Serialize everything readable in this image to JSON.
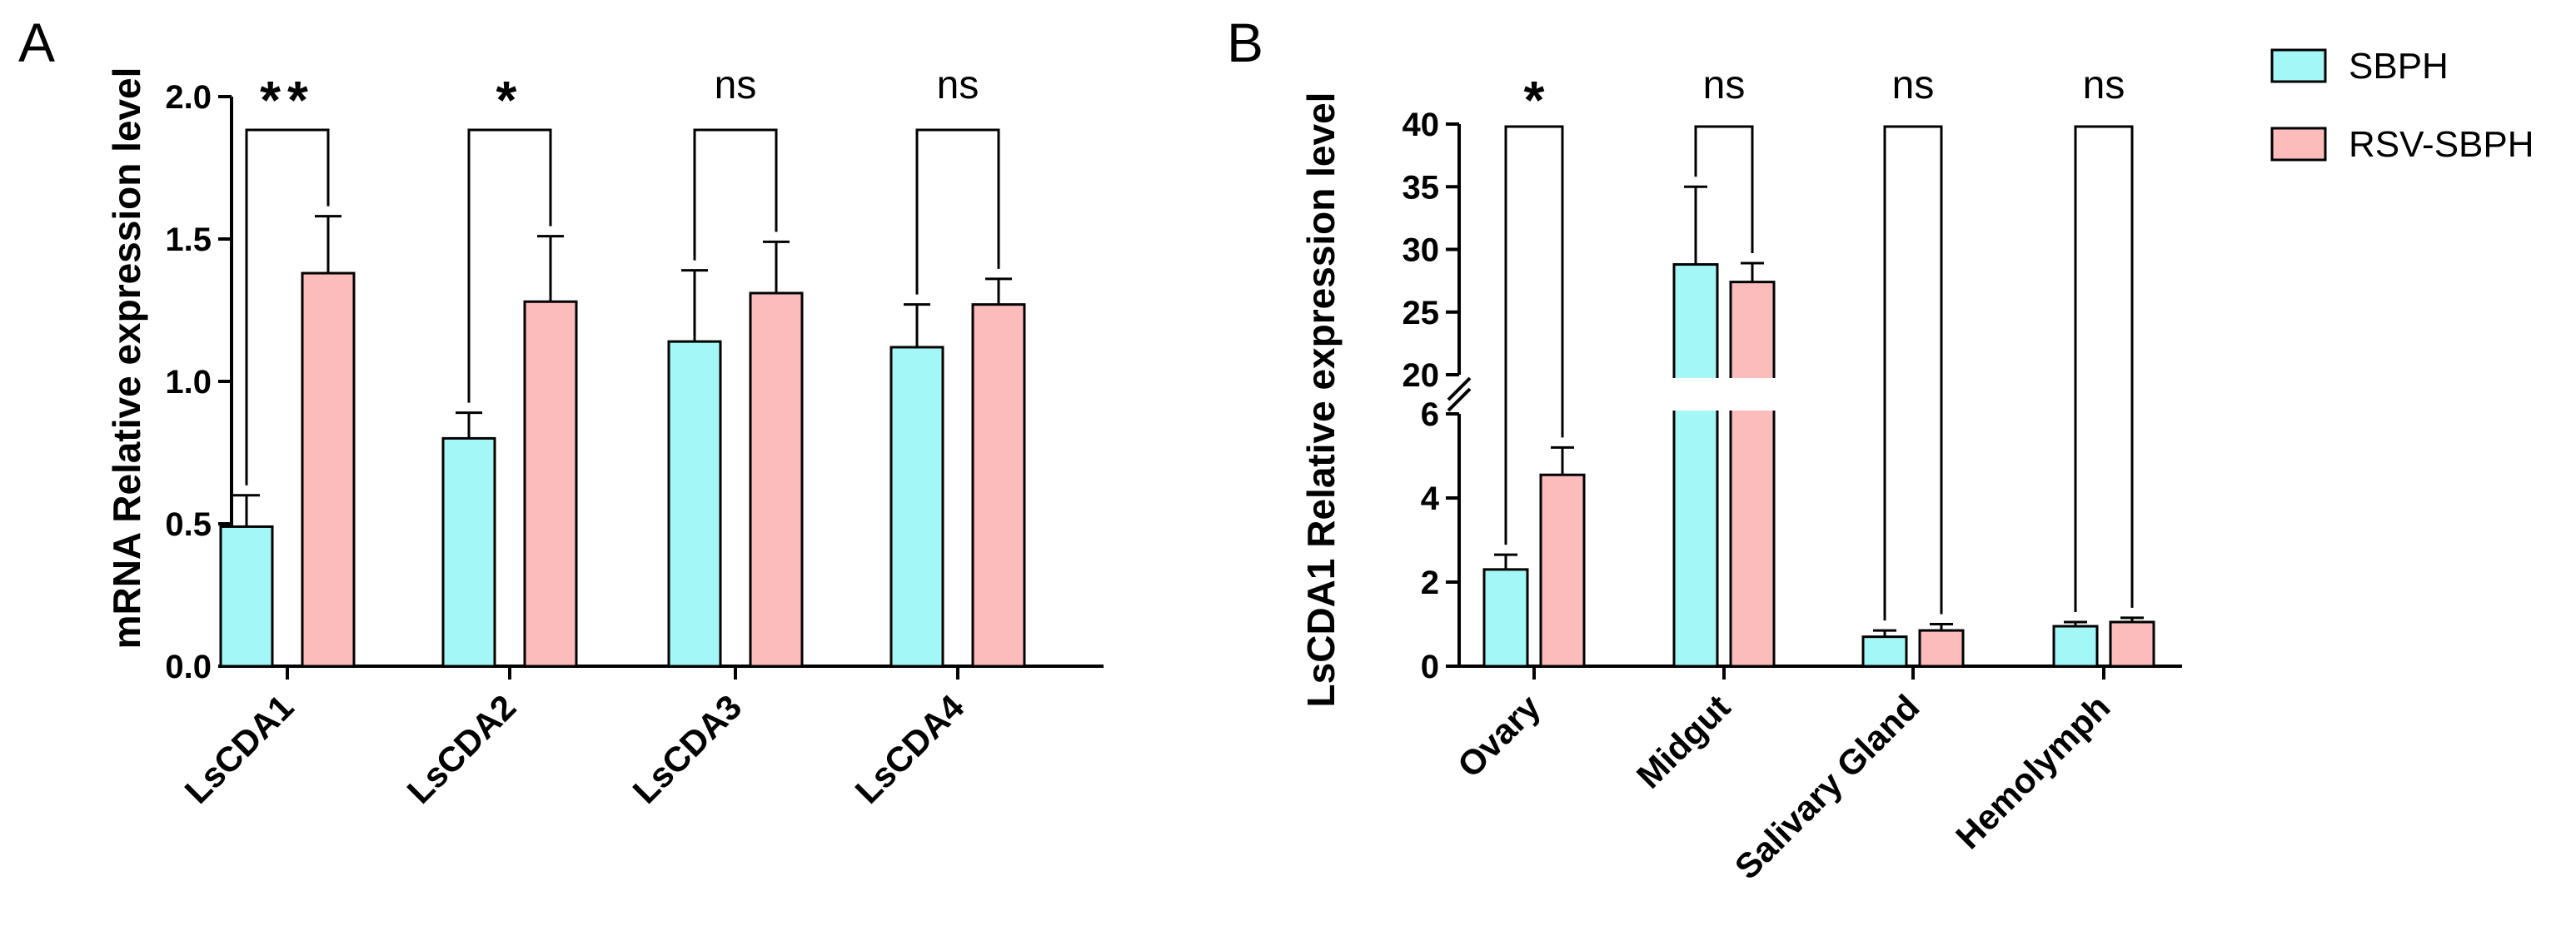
{
  "colors": {
    "sbph": "#a3f7f7",
    "rsv": "#fcbcbc",
    "axis": "#000000",
    "background": "#ffffff"
  },
  "legend": [
    {
      "label": "SBPH",
      "color": "#a3f7f7"
    },
    {
      "label": "RSV-SBPH",
      "color": "#fcbcbc"
    }
  ],
  "chart_data": [
    {
      "panel": "A",
      "type": "bar",
      "ylabel": "mRNA Relative expression level",
      "xlabel": "",
      "categories": [
        "LsCDA1",
        "LsCDA2",
        "LsCDA3",
        "LsCDA4"
      ],
      "ylim": [
        0,
        2.0
      ],
      "yticks": [
        0.0,
        0.5,
        1.0,
        1.5,
        2.0
      ],
      "ytick_labels": [
        "0.0",
        "0.5",
        "1.0",
        "1.5",
        "2.0"
      ],
      "series": [
        {
          "name": "SBPH",
          "values": [
            0.49,
            0.8,
            1.14,
            1.12
          ],
          "errors": [
            0.11,
            0.09,
            0.25,
            0.15
          ]
        },
        {
          "name": "RSV-SBPH",
          "values": [
            1.38,
            1.28,
            1.31,
            1.27
          ],
          "errors": [
            0.2,
            0.23,
            0.18,
            0.09
          ]
        }
      ],
      "significance": [
        "**",
        "*",
        "ns",
        "ns"
      ]
    },
    {
      "panel": "B",
      "type": "bar",
      "ylabel": "LsCDA1 Relative expression level",
      "xlabel": "",
      "categories": [
        "Ovary",
        "Midgut",
        "Salivary Gland",
        "Hemolymph"
      ],
      "axis_break": {
        "lower": [
          0,
          6
        ],
        "upper": [
          20,
          40
        ]
      },
      "yticks": [
        0,
        2,
        4,
        6,
        20,
        25,
        30,
        35,
        40
      ],
      "ytick_labels": [
        "0",
        "2",
        "4",
        "6",
        "20",
        "25",
        "30",
        "35",
        "40"
      ],
      "series": [
        {
          "name": "SBPH",
          "values": [
            2.3,
            28.8,
            0.7,
            0.95
          ],
          "errors": [
            0.35,
            6.2,
            0.15,
            0.1
          ]
        },
        {
          "name": "RSV-SBPH",
          "values": [
            4.55,
            27.4,
            0.85,
            1.05
          ],
          "errors": [
            0.65,
            1.5,
            0.15,
            0.1
          ]
        }
      ],
      "significance": [
        "*",
        "ns",
        "ns",
        "ns"
      ]
    }
  ]
}
